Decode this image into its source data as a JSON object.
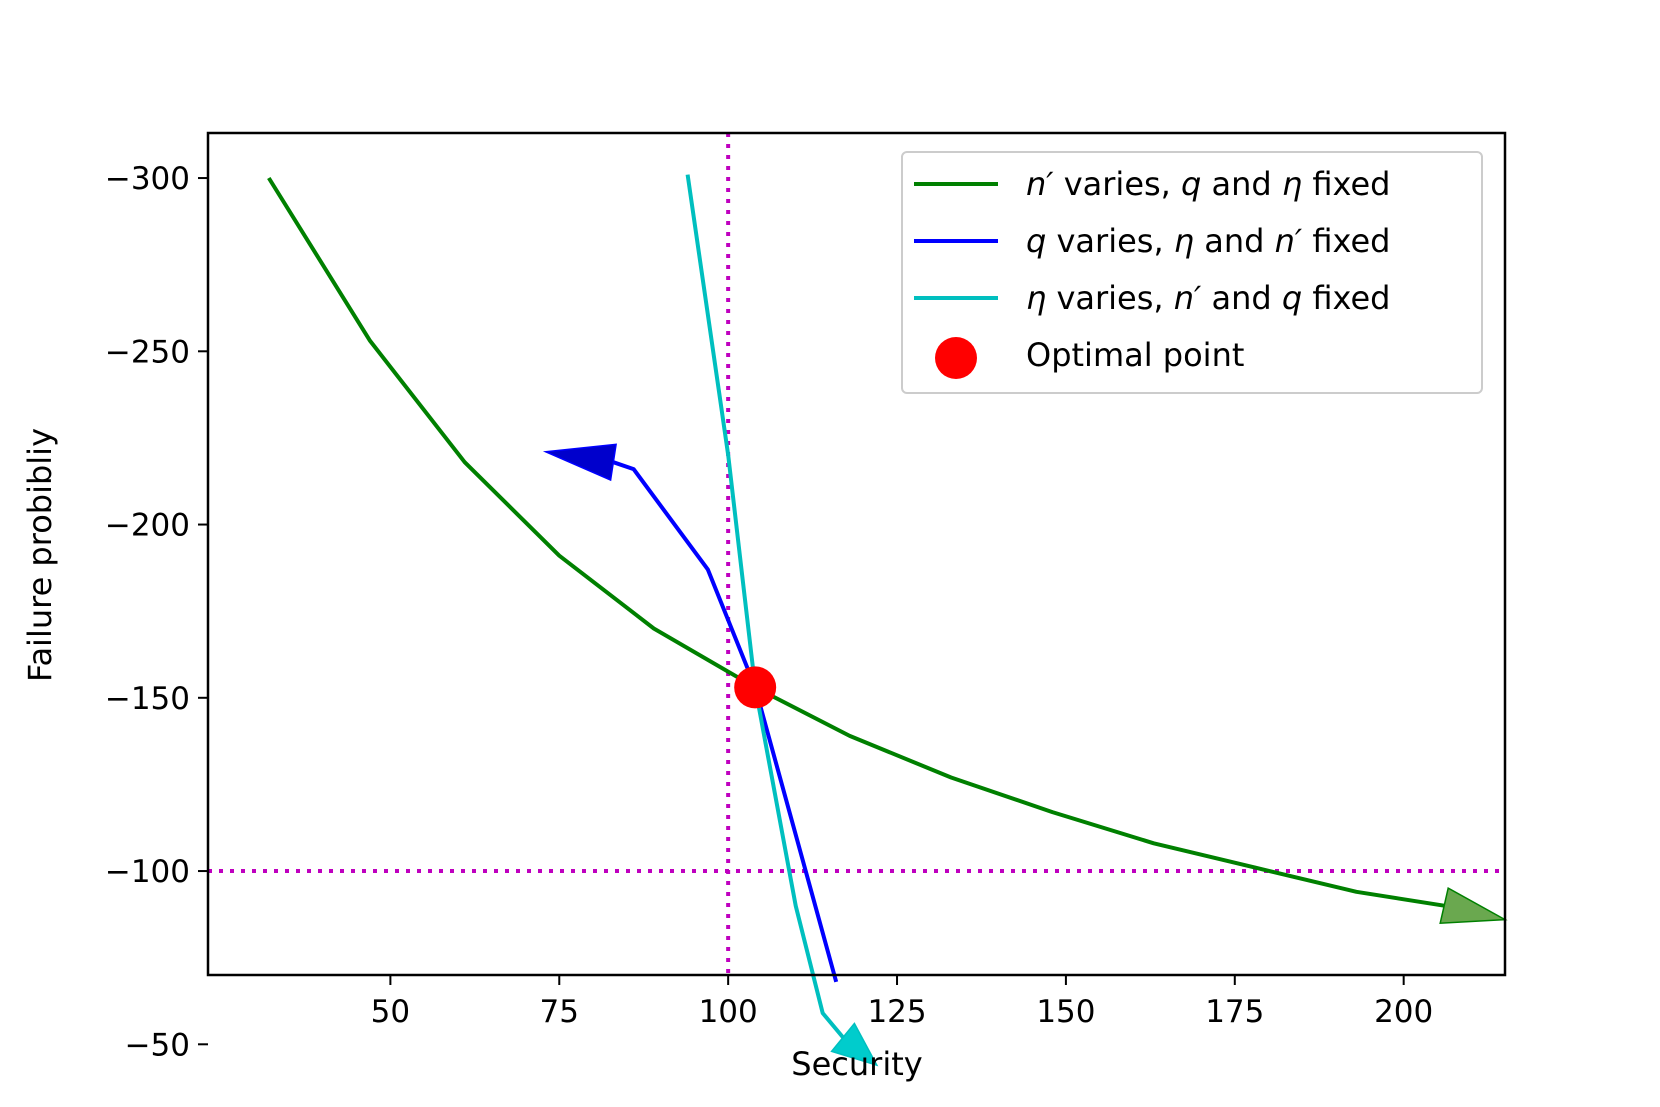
{
  "chart_data": {
    "type": "line",
    "xlabel": "Security",
    "ylabel": "Failure probibliy",
    "xlim": [
      23,
      215
    ],
    "ylim": [
      -70,
      -313
    ],
    "y_axis_inverted": true,
    "xticks": [
      50,
      75,
      100,
      125,
      150,
      175,
      200
    ],
    "xtick_labels": [
      "50",
      "75",
      "100",
      "125",
      "150",
      "175",
      "200"
    ],
    "yticks": [
      -300,
      -250,
      -200,
      -150,
      -100,
      -50
    ],
    "ytick_labels": [
      "−300",
      "−250",
      "−200",
      "−150",
      "−100",
      "−50"
    ],
    "grid": false,
    "legend_position": "top-right",
    "series": [
      {
        "name": "n′ varies, q and η fixed",
        "legend_parts": [
          [
            "n′",
            true
          ],
          [
            " varies, ",
            false
          ],
          [
            "q",
            true
          ],
          [
            " and ",
            false
          ],
          [
            "η",
            true
          ],
          [
            " fixed",
            false
          ]
        ],
        "color": "#008000",
        "x": [
          32,
          47,
          61,
          75,
          89,
          104,
          118,
          133,
          148,
          163,
          178,
          193,
          206
        ],
        "y": [
          -300,
          -253,
          -218,
          -191,
          -170,
          -153,
          -139,
          -127,
          -117,
          -108,
          -101,
          -94,
          -90
        ],
        "arrow_tip": [
          215,
          -86
        ],
        "arrow_color": "#6aa84f"
      },
      {
        "name": "q varies, η and n′ fixed",
        "legend_parts": [
          [
            "q",
            true
          ],
          [
            " varies, ",
            false
          ],
          [
            "η",
            true
          ],
          [
            " and ",
            false
          ],
          [
            "n′",
            true
          ],
          [
            " fixed",
            false
          ]
        ],
        "color": "#0000ff",
        "x": [
          116,
          104,
          97,
          86,
          83
        ],
        "y": [
          -68,
          -153,
          -187,
          -216,
          -218
        ],
        "arrow_tip": [
          73,
          -221
        ],
        "arrow_color": "#0000cc"
      },
      {
        "name": "η varies, n′ and q fixed",
        "legend_parts": [
          [
            "η",
            true
          ],
          [
            " varies, ",
            false
          ],
          [
            "n′",
            true
          ],
          [
            " and ",
            false
          ],
          [
            "q",
            true
          ],
          [
            " fixed",
            false
          ]
        ],
        "color": "#00bfbf",
        "x": [
          94,
          100,
          104,
          110,
          114,
          117
        ],
        "y": [
          -301,
          -220,
          -153,
          -90,
          -59,
          -52
        ],
        "arrow_tip": [
          122,
          -44
        ],
        "arrow_color": "#00cccc"
      }
    ],
    "scatter": [
      {
        "name": "Optimal point",
        "x": 104,
        "y": -153,
        "color": "#ff0000"
      }
    ],
    "reference_lines": [
      {
        "orientation": "vertical",
        "value": 100,
        "color": "#bf00bf",
        "style": "dotted"
      },
      {
        "orientation": "horizontal",
        "value": -100,
        "color": "#bf00bf",
        "style": "dotted"
      }
    ]
  }
}
